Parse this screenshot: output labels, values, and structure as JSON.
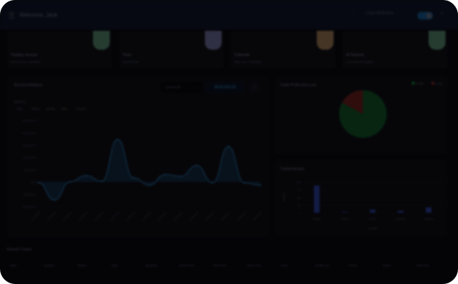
{
  "header": {
    "welcome": "Welcome, Jack",
    "sync_label": "Sync All Brokers",
    "menu_icon": "menu-icon",
    "bell_icon": "bell-icon",
    "rocket_icon": "rocket-icon",
    "toggle_on": true
  },
  "cards": [
    {
      "title": "Trading Journal",
      "subtitle": "Record your activities",
      "color": "#3c5c4c"
    },
    {
      "title": "Tools",
      "subtitle": "Useful tools",
      "color": "#4a4a6a"
    },
    {
      "title": "Calendar",
      "subtitle": "Plan your strategies",
      "color": "#6a5238"
    },
    {
      "title": "AI Reports",
      "subtitle": "AI-powered insights",
      "color": "#3c5c4c"
    }
  ],
  "balance_panel": {
    "title": "Account Balance",
    "period": "Last Month",
    "balance": "$244,933.45",
    "expand_icon": "expand-icon",
    "label": "Balance",
    "tabs": [
      "Day",
      "Week",
      "Month",
      "Year",
      "Custom"
    ],
    "active_tab": 3
  },
  "chart_data": [
    {
      "type": "area",
      "title": "Account Balance",
      "ylim": [
        -100000,
        250000
      ],
      "yticks": [
        "250,000.00",
        "200,000.00",
        "150,000.00",
        "100,000.00",
        "50,000.00",
        "0.00",
        "-50,000.00",
        "-100,000.00"
      ],
      "series": [
        {
          "values": [
            -4000,
            -74000,
            0,
            25000,
            2000,
            172000,
            16000,
            -14000,
            29000,
            22000,
            66000,
            -4000,
            143000,
            -4000,
            -14000
          ]
        }
      ],
      "color": "#1b4c72"
    },
    {
      "type": "pie",
      "title": "Trade Profit and Loss",
      "legend": "top-right",
      "categories": [
        "Profit",
        "Loss"
      ],
      "values": [
        83,
        17
      ],
      "colors": [
        "#0b3a1b",
        "#4a1515"
      ]
    },
    {
      "type": "bar",
      "title": "Traded Assets",
      "xlabel": "Assets",
      "ylabel": "Volume",
      "categories": [
        "Stocks",
        "Crypto",
        "Forex",
        "Options",
        "Futures"
      ],
      "values": [
        88,
        2,
        10,
        6,
        17
      ],
      "ylim": [
        0,
        100
      ],
      "yticks": [
        "100",
        "75",
        "50",
        "25",
        "0"
      ],
      "color": "#1c2b6b"
    }
  ],
  "recent_trades": {
    "title": "Recent Trades",
    "columns": [
      "Date",
      "Symbol",
      "Status",
      "Side",
      "Quantity",
      "Entry Price",
      "Exit Price",
      "Stop Price",
      "Fees",
      "Profit/Loss",
      "ROI%",
      "Notes",
      "Exit Time"
    ]
  }
}
